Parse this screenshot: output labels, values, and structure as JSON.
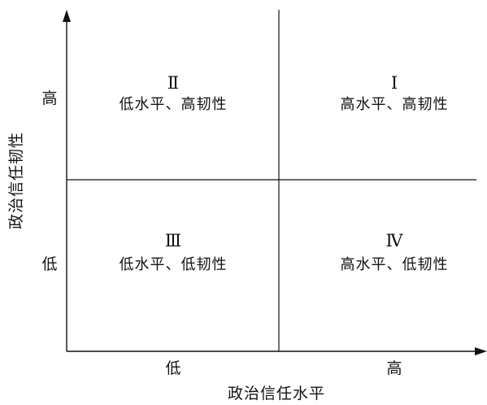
{
  "diagram": {
    "x_axis": {
      "title": "政治信任水平",
      "ticks": [
        "低",
        "高"
      ]
    },
    "y_axis": {
      "title": "政治信任韧性",
      "ticks": [
        "高",
        "低"
      ]
    },
    "quadrants": {
      "top_left": {
        "numeral": "Ⅱ",
        "label": "低水平、高韧性"
      },
      "top_right": {
        "numeral": "Ⅰ",
        "label": "高水平、高韧性"
      },
      "bottom_left": {
        "numeral": "Ⅲ",
        "label": "低水平、低韧性"
      },
      "bottom_right": {
        "numeral": "Ⅳ",
        "label": "高水平、低韧性"
      }
    }
  }
}
